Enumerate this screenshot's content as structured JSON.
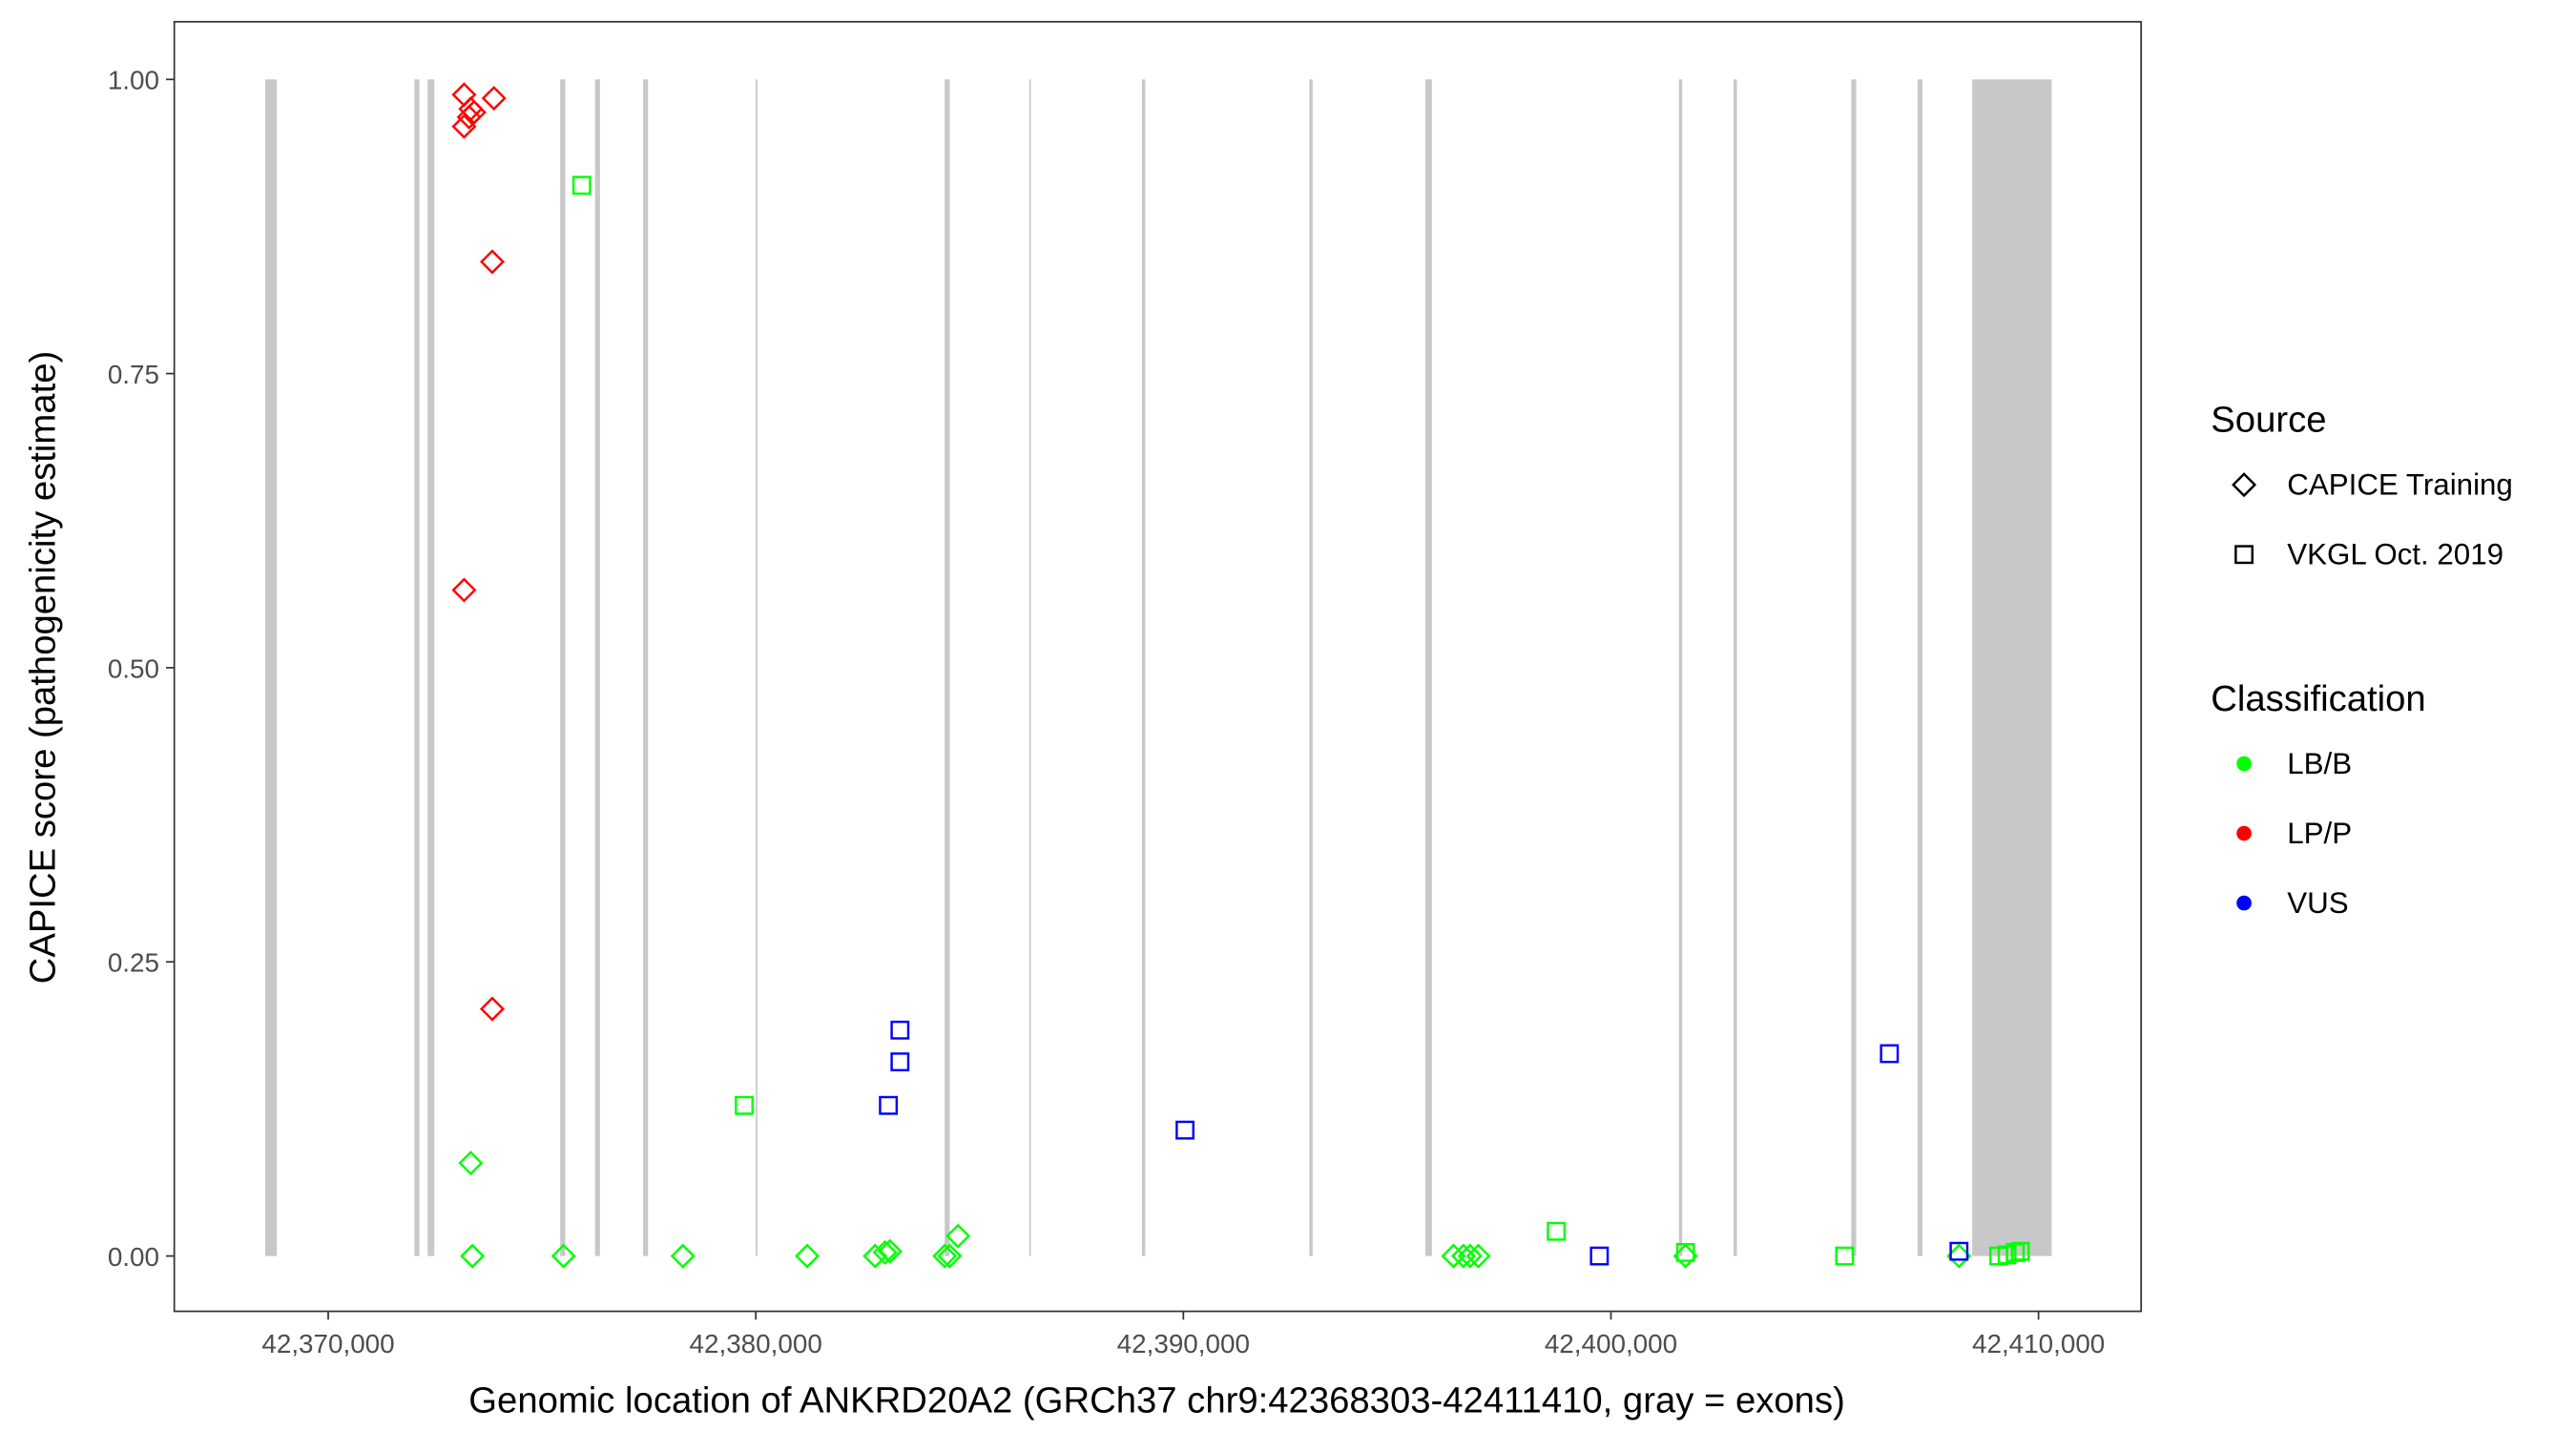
{
  "chart_data": {
    "type": "scatter",
    "x_label": "Genomic location of ANKRD20A2 (GRCh37 chr9:42368303-42411410, gray = exons)",
    "y_label": "CAPICE score (pathogenicity estimate)",
    "xlim": [
      42366400,
      42412400
    ],
    "ylim": [
      -0.047,
      1.049
    ],
    "xticks": [
      {
        "value": 42370000,
        "label": "42,370,000"
      },
      {
        "value": 42380000,
        "label": "42,380,000"
      },
      {
        "value": 42390000,
        "label": "42,390,000"
      },
      {
        "value": 42400000,
        "label": "42,400,000"
      },
      {
        "value": 42410000,
        "label": "42,410,000"
      }
    ],
    "yticks": [
      {
        "value": 0,
        "label": "0.00"
      },
      {
        "value": 0.25,
        "label": "0.25"
      },
      {
        "value": 0.5,
        "label": "0.50"
      },
      {
        "value": 0.75,
        "label": "0.75"
      },
      {
        "value": 1,
        "label": "1.00"
      }
    ],
    "grid": false,
    "exon_color": "#c8c8c8",
    "exons": [
      [
        42368527,
        42368798
      ],
      [
        42372016,
        42372132
      ],
      [
        42372326,
        42372481
      ],
      [
        42375426,
        42375543
      ],
      [
        42376240,
        42376357
      ],
      [
        42377364,
        42377481
      ],
      [
        42380000,
        42380039
      ],
      [
        42384419,
        42384535
      ],
      [
        42386395,
        42386434
      ],
      [
        42389031,
        42389108
      ],
      [
        42392946,
        42393023
      ],
      [
        42395659,
        42395814
      ],
      [
        42401589,
        42401667
      ],
      [
        42402868,
        42402946
      ],
      [
        42405620,
        42405736
      ],
      [
        42407171,
        42407287
      ],
      [
        42408450,
        42410310
      ]
    ],
    "shape_legend": {
      "title": "Source",
      "entries": [
        {
          "label": "CAPICE Training",
          "shape": "diamond"
        },
        {
          "label": "VKGL Oct. 2019",
          "shape": "square"
        }
      ]
    },
    "color_legend": {
      "title": "Classification",
      "entries": [
        {
          "label": "LB/B",
          "color": "#00ff00"
        },
        {
          "label": "LP/P",
          "color": "#ff0000"
        },
        {
          "label": "VUS",
          "color": "#0000ff"
        }
      ]
    },
    "series": [
      {
        "source": "CAPICE Training",
        "classification": "LP/P",
        "x": [
          42373178,
          42373876,
          42373333,
          42373411,
          42373295,
          42373178,
          42373837,
          42373178,
          42373837
        ],
        "y": [
          0.987,
          0.984,
          0.975,
          0.972,
          0.968,
          0.96,
          0.845,
          0.566,
          0.21
        ]
      },
      {
        "source": "CAPICE Training",
        "classification": "LB/B",
        "x": [
          42373333,
          42373372,
          42375504,
          42378295,
          42381202,
          42382791,
          42383023,
          42383140,
          42384419,
          42384535,
          42384729,
          42396318,
          42396550,
          42396705,
          42396899,
          42401744,
          42408140
        ],
        "y": [
          0.079,
          0,
          0,
          0,
          0,
          0,
          0.003,
          0.004,
          0,
          0,
          0.017,
          0,
          0,
          0,
          0,
          0,
          0
        ]
      },
      {
        "source": "VKGL Oct. 2019",
        "classification": "LB/B",
        "x": [
          42375930,
          42379729,
          42398721,
          42401744,
          42405465,
          42409070,
          42409264,
          42409457,
          42409574
        ],
        "y": [
          0.91,
          0.128,
          0.021,
          0.003,
          0,
          0,
          0.001,
          0.003,
          0.004
        ]
      },
      {
        "source": "VKGL Oct. 2019",
        "classification": "VUS",
        "x": [
          42383372,
          42383372,
          42383101,
          42390039,
          42399729,
          42406512,
          42408140
        ],
        "y": [
          0.192,
          0.165,
          0.128,
          0.107,
          0,
          0.172,
          0.004
        ]
      }
    ]
  }
}
